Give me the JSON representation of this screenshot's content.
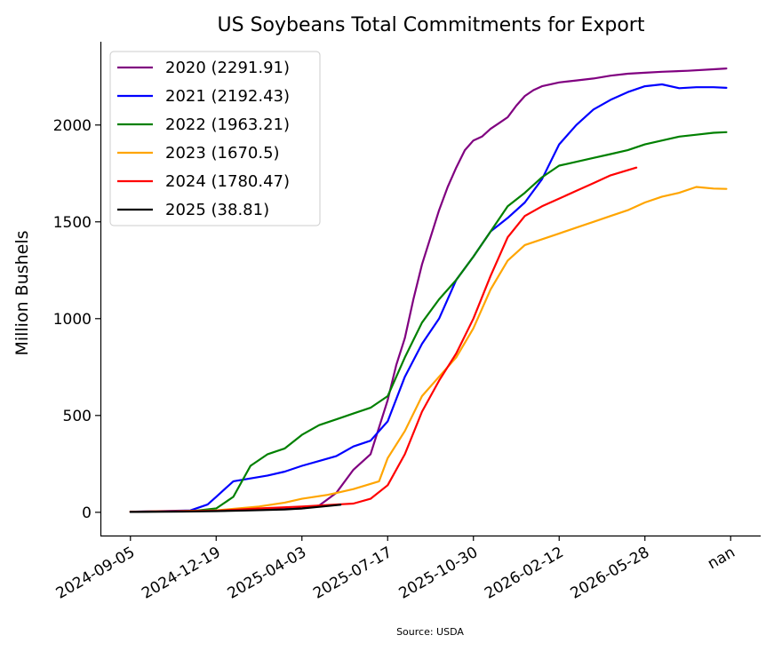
{
  "chart_data": {
    "type": "line",
    "title": "US Soybeans Total Commitments for Export",
    "xlabel": "",
    "ylabel": "Million Bushels",
    "source": "Source: USDA",
    "x_ticks": [
      "2024-09-05",
      "2024-12-19",
      "2025-04-03",
      "2025-07-17",
      "2025-10-30",
      "2026-02-12",
      "2026-05-28",
      "nan"
    ],
    "y_ticks": [
      0,
      500,
      1000,
      1500,
      2000
    ],
    "ylim": [
      -120,
      2430
    ],
    "xlim": [
      -0.35,
      7.35
    ],
    "grid": false,
    "legend_position": "top-left",
    "series": [
      {
        "name": "2020 (2291.91)",
        "color": "#800080",
        "x": [
          0,
          0.5,
          1.0,
          1.5,
          2.0,
          2.2,
          2.4,
          2.6,
          2.8,
          3.0,
          3.1,
          3.2,
          3.3,
          3.4,
          3.5,
          3.6,
          3.7,
          3.8,
          3.9,
          4.0,
          4.1,
          4.2,
          4.3,
          4.4,
          4.5,
          4.6,
          4.7,
          4.8,
          5.0,
          5.2,
          5.4,
          5.6,
          5.8,
          6.0,
          6.2,
          6.5,
          6.8,
          6.95
        ],
        "y": [
          3,
          5,
          8,
          12,
          20,
          35,
          100,
          220,
          300,
          580,
          760,
          900,
          1100,
          1280,
          1420,
          1560,
          1680,
          1780,
          1870,
          1920,
          1940,
          1980,
          2010,
          2040,
          2100,
          2150,
          2180,
          2200,
          2220,
          2230,
          2240,
          2255,
          2265,
          2270,
          2275,
          2280,
          2288,
          2292
        ]
      },
      {
        "name": "2021 (2192.43)",
        "color": "#0000ff",
        "x": [
          0,
          0.7,
          0.9,
          1.0,
          1.2,
          1.4,
          1.6,
          1.8,
          2.0,
          2.2,
          2.4,
          2.6,
          2.8,
          3.0,
          3.2,
          3.4,
          3.6,
          3.8,
          4.0,
          4.2,
          4.4,
          4.6,
          4.8,
          5.0,
          5.2,
          5.4,
          5.6,
          5.8,
          6.0,
          6.2,
          6.4,
          6.6,
          6.8,
          6.95
        ],
        "y": [
          3,
          10,
          40,
          80,
          160,
          175,
          190,
          210,
          240,
          265,
          290,
          340,
          370,
          470,
          700,
          870,
          1000,
          1200,
          1320,
          1450,
          1520,
          1600,
          1720,
          1900,
          2000,
          2080,
          2130,
          2170,
          2200,
          2210,
          2190,
          2195,
          2195,
          2192
        ]
      },
      {
        "name": "2022 (1963.21)",
        "color": "#008000",
        "x": [
          0,
          0.7,
          1.0,
          1.2,
          1.4,
          1.6,
          1.8,
          2.0,
          2.2,
          2.4,
          2.6,
          2.8,
          3.0,
          3.2,
          3.4,
          3.6,
          3.8,
          4.0,
          4.2,
          4.4,
          4.6,
          4.8,
          5.0,
          5.2,
          5.4,
          5.6,
          5.8,
          6.0,
          6.2,
          6.4,
          6.6,
          6.8,
          6.95
        ],
        "y": [
          3,
          5,
          20,
          80,
          240,
          300,
          330,
          400,
          450,
          480,
          510,
          540,
          600,
          800,
          980,
          1100,
          1200,
          1320,
          1450,
          1580,
          1650,
          1730,
          1790,
          1810,
          1830,
          1850,
          1870,
          1900,
          1920,
          1940,
          1950,
          1960,
          1963
        ]
      },
      {
        "name": "2023 (1670.5)",
        "color": "#ffa500",
        "x": [
          0,
          1.0,
          1.5,
          1.8,
          2.0,
          2.3,
          2.6,
          2.9,
          3.0,
          3.2,
          3.4,
          3.6,
          3.8,
          4.0,
          4.2,
          4.4,
          4.6,
          4.8,
          5.0,
          5.2,
          5.4,
          5.6,
          5.8,
          6.0,
          6.2,
          6.4,
          6.6,
          6.8,
          6.95
        ],
        "y": [
          3,
          10,
          30,
          50,
          70,
          90,
          120,
          160,
          280,
          420,
          600,
          700,
          800,
          950,
          1150,
          1300,
          1380,
          1410,
          1440,
          1470,
          1500,
          1530,
          1560,
          1600,
          1630,
          1650,
          1680,
          1672,
          1670
        ]
      },
      {
        "name": "2024 (1780.47)",
        "color": "#ff0000",
        "x": [
          0,
          1.0,
          1.5,
          2.0,
          2.4,
          2.6,
          2.8,
          3.0,
          3.2,
          3.4,
          3.6,
          3.8,
          4.0,
          4.2,
          4.4,
          4.6,
          4.8,
          5.0,
          5.2,
          5.4,
          5.6,
          5.9
        ],
        "y": [
          3,
          8,
          20,
          30,
          40,
          45,
          70,
          140,
          300,
          520,
          680,
          820,
          1000,
          1220,
          1420,
          1530,
          1580,
          1620,
          1660,
          1700,
          1740,
          1780
        ]
      },
      {
        "name": "2025 (38.81)",
        "color": "#000000",
        "x": [
          0,
          0.6,
          1.0,
          1.4,
          1.8,
          2.0,
          2.2,
          2.45
        ],
        "y": [
          2,
          4,
          6,
          10,
          15,
          20,
          28,
          39
        ]
      }
    ]
  }
}
